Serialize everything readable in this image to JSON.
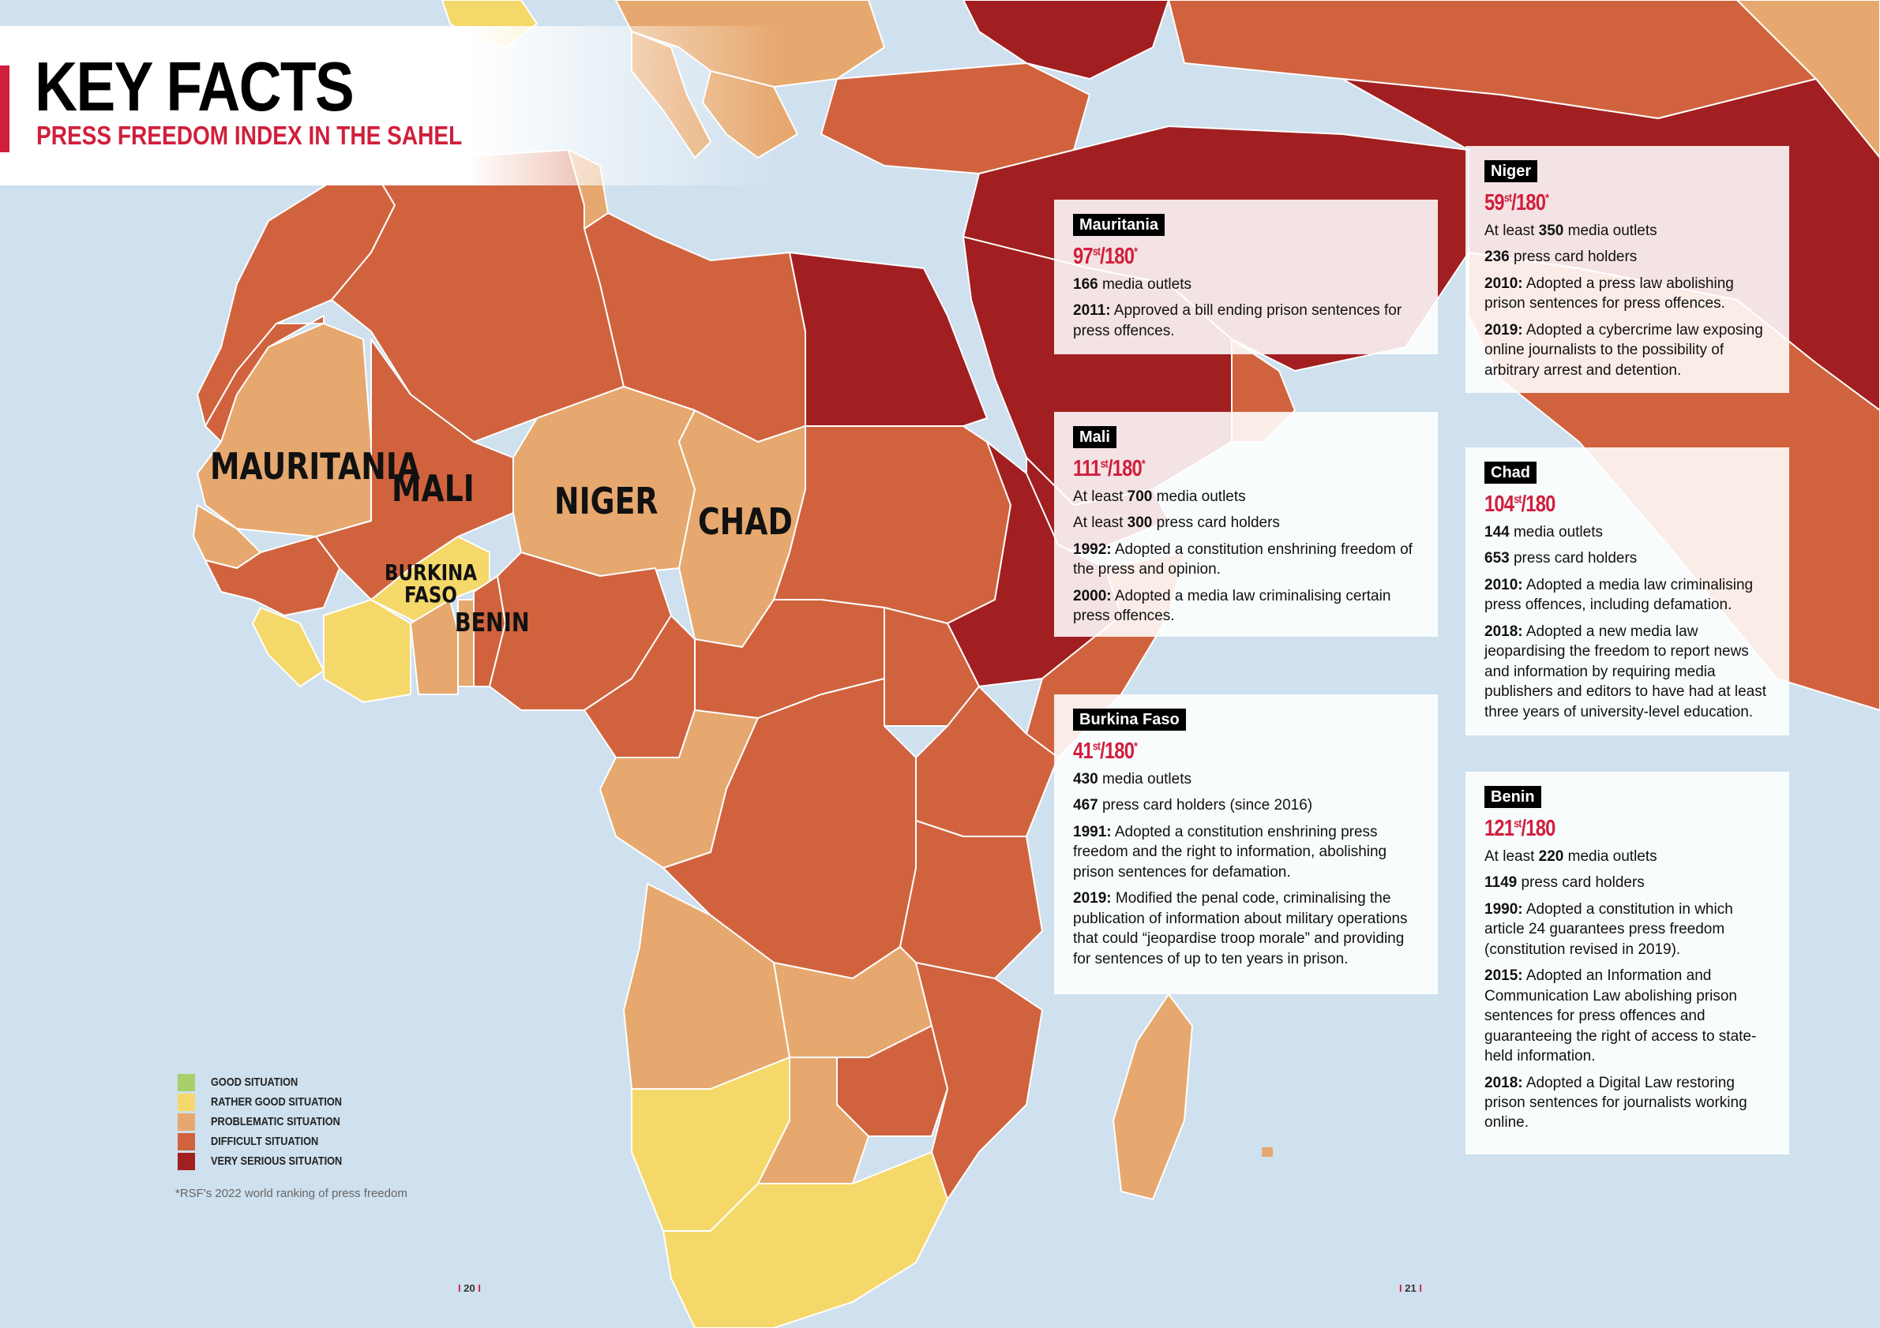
{
  "header": {
    "title": "KEY FACTS",
    "subtitle": "PRESS FREEDOM INDEX IN THE SAHEL"
  },
  "colors": {
    "sea": "#cfe0ee",
    "good": "#a8cf6a",
    "rather_good": "#f5d86a",
    "problematic": "#e6a86e",
    "difficult": "#d0633e",
    "very_serious": "#a11f20",
    "accent": "#d01f3c"
  },
  "map_labels": {
    "mauritania": "MAURITANIA",
    "mali": "MALI",
    "niger": "NIGER",
    "chad": "CHAD",
    "burkina_line1": "BURKINA",
    "burkina_line2": "FASO",
    "benin": "BENIN"
  },
  "cards": {
    "mauritania": {
      "name": "Mauritania",
      "rank": "97",
      "rank_suffix": "st",
      "rank_total": "/180",
      "rank_mark": "*",
      "facts": [
        {
          "bold": "166",
          "text": " media outlets"
        },
        {
          "bold": "2011:",
          "text": " Approved a bill ending prison sentences for press offences."
        }
      ]
    },
    "mali": {
      "name": "Mali",
      "rank": "111",
      "rank_suffix": "st",
      "rank_total": "/180",
      "rank_mark": "*",
      "facts": [
        {
          "pre": "At least ",
          "bold": "700",
          "text": " media outlets"
        },
        {
          "pre": "At least ",
          "bold": "300",
          "text": " press card holders"
        },
        {
          "bold": "1992:",
          "text": " Adopted a constitution enshrining freedom of the press and opinion."
        },
        {
          "bold": "2000:",
          "text": " Adopted a media law criminalising certain press offences."
        }
      ]
    },
    "burkina": {
      "name": "Burkina Faso",
      "rank": "41",
      "rank_suffix": "st",
      "rank_total": "/180",
      "rank_mark": "*",
      "facts": [
        {
          "bold": "430",
          "text": " media outlets"
        },
        {
          "bold": "467",
          "text": " press card holders (since 2016)"
        },
        {
          "bold": "1991:",
          "text": " Adopted a constitution enshrining press freedom and the right to information, abolishing prison sentences for defamation."
        },
        {
          "bold": "2019:",
          "text": " Modified the penal code, criminalising the publication of information about military operations that could “jeopardise troop morale” and providing for sentences of up to ten years in prison."
        }
      ]
    },
    "niger": {
      "name": "Niger",
      "rank": "59",
      "rank_suffix": "st",
      "rank_total": "/180",
      "rank_mark": "*",
      "facts": [
        {
          "pre": "At least ",
          "bold": "350",
          "text": " media outlets"
        },
        {
          "bold": "236",
          "text": " press card holders"
        },
        {
          "bold": "2010:",
          "text": " Adopted a press law abolishing prison sentences for press offences."
        },
        {
          "bold": "2019:",
          "text": " Adopted a cybercrime law exposing online journalists to the possibility of arbitrary arrest and detention."
        }
      ]
    },
    "chad": {
      "name": "Chad",
      "rank": "104",
      "rank_suffix": "st",
      "rank_total": "/180",
      "rank_mark": "",
      "facts": [
        {
          "bold": "144",
          "text": " media outlets"
        },
        {
          "bold": "653",
          "text": " press card holders"
        },
        {
          "bold": "2010:",
          "text": " Adopted a media law criminalising press offences, including defamation."
        },
        {
          "bold": "2018:",
          "text": " Adopted a new media law jeopardising the freedom to report news and information by requiring media publishers and editors to have had at least three years of university-level education."
        }
      ]
    },
    "benin": {
      "name": "Benin",
      "rank": "121",
      "rank_suffix": "st",
      "rank_total": "/180",
      "rank_mark": "",
      "facts": [
        {
          "pre": "At least ",
          "bold": "220",
          "text": " media outlets"
        },
        {
          "bold": "1149",
          "text": " press card holders"
        },
        {
          "bold": "1990:",
          "text": " Adopted a constitution in which article 24 guarantees press freedom (constitution revised in 2019)."
        },
        {
          "bold": "2015:",
          "text": " Adopted an Information and Communication Law abolishing prison sentences for press offences and guaranteeing the right of access to state-held information."
        },
        {
          "bold": "2018:",
          "text": " Adopted a Digital Law restoring prison sentences for journalists working online."
        }
      ]
    }
  },
  "legend": [
    {
      "label": "GOOD SITUATION",
      "color": "#a8cf6a"
    },
    {
      "label": "RATHER GOOD SITUATION",
      "color": "#f5d86a"
    },
    {
      "label": "PROBLEMATIC SITUATION",
      "color": "#e6a86e"
    },
    {
      "label": "DIFFICULT SITUATION",
      "color": "#d0633e"
    },
    {
      "label": "VERY SERIOUS SITUATION",
      "color": "#a11f20"
    }
  ],
  "footnote": "*RSF's 2022 world ranking of press freedom",
  "pages": {
    "left": "20",
    "right": "21"
  }
}
